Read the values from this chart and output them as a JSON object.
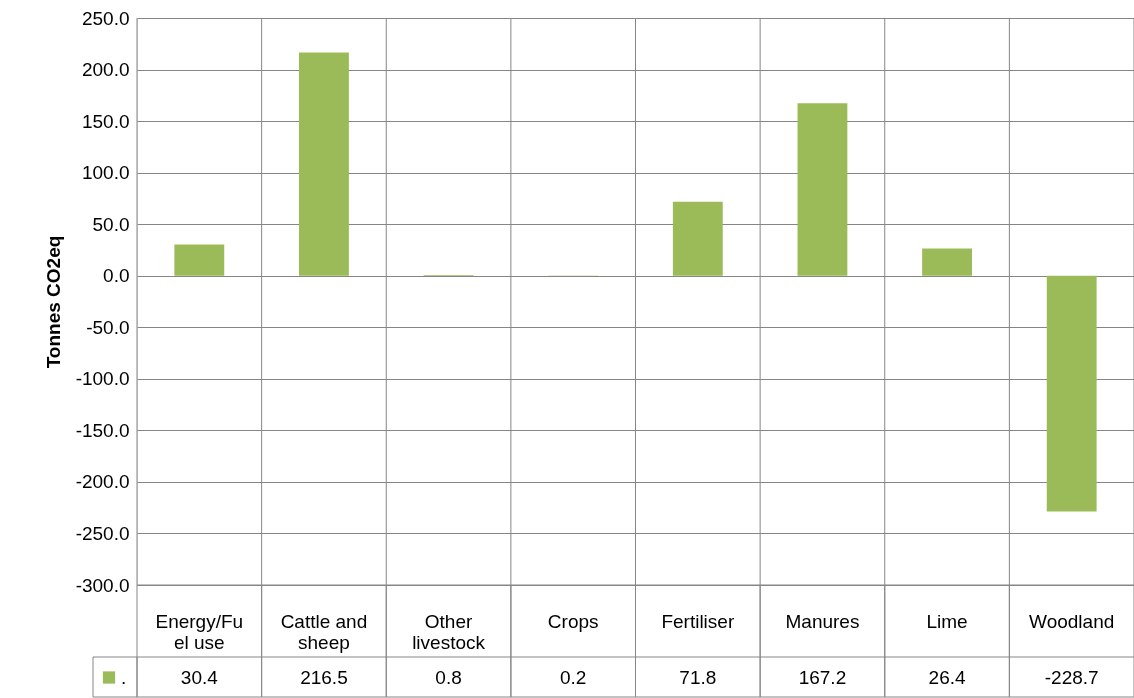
{
  "chart_data": {
    "type": "bar",
    "ylabel": "Tonnes CO2eq",
    "categories": [
      "Energy/Fuel use",
      "Cattle and sheep",
      "Other livestock",
      "Crops",
      "Fertiliser",
      "Manures",
      "Lime",
      "Woodland"
    ],
    "series": [
      {
        "name": ".",
        "color": "#9bbb59",
        "values": [
          30.4,
          216.5,
          0.8,
          0.2,
          71.8,
          167.2,
          26.4,
          -228.7
        ]
      }
    ],
    "ylim": [
      -300,
      250
    ],
    "yticks": [
      {
        "value": -300,
        "label": "-300.0"
      },
      {
        "value": -250,
        "label": "-250.0"
      },
      {
        "value": -200,
        "label": "-200.0"
      },
      {
        "value": -150,
        "label": "-150.0"
      },
      {
        "value": -100,
        "label": "-100.0"
      },
      {
        "value": -50,
        "label": "-50.0"
      },
      {
        "value": 0,
        "label": "0.0"
      },
      {
        "value": 50,
        "label": "50.0"
      },
      {
        "value": 100,
        "label": "100.0"
      },
      {
        "value": 150,
        "label": "150.0"
      },
      {
        "value": 200,
        "label": "200.0"
      },
      {
        "value": 250,
        "label": "250.0"
      }
    ],
    "grid": true,
    "legend": "bottom left",
    "data_labels": true
  }
}
